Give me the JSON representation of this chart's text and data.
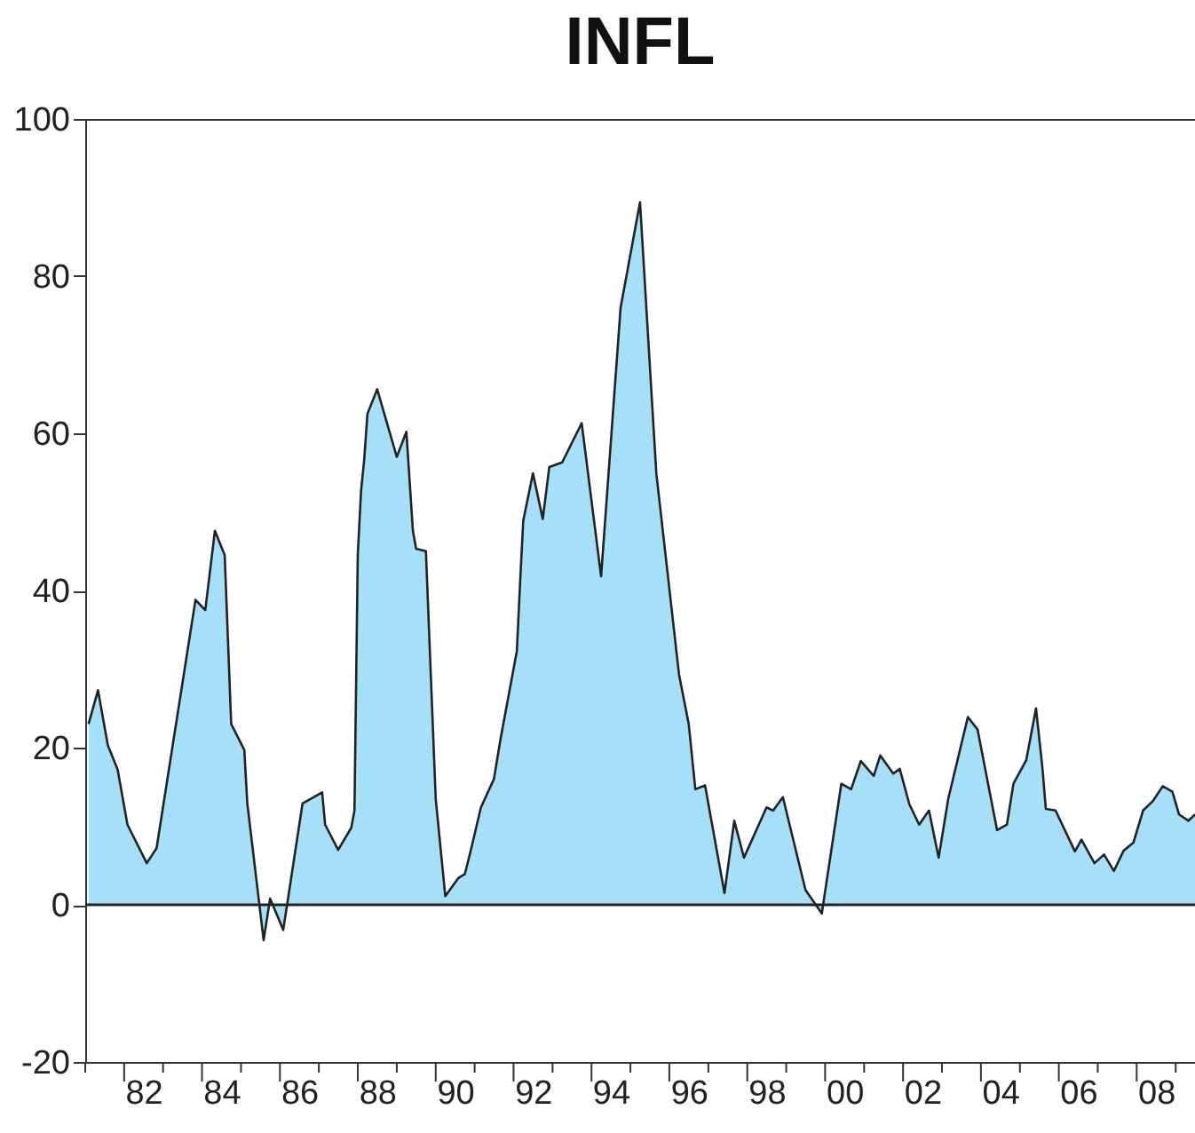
{
  "chart_data": {
    "type": "area",
    "title": "INFL",
    "x": [
      "1981-02",
      "1981-05",
      "1981-08",
      "1981-11",
      "1982-02",
      "1982-08",
      "1982-11",
      "1983-11",
      "1984-02",
      "1984-05",
      "1984-08",
      "1984-10",
      "1985-02",
      "1985-03",
      "1985-08",
      "1985-10",
      "1986-02",
      "1986-08",
      "1987-02",
      "1987-03",
      "1987-07",
      "1987-11",
      "1987-12",
      "1988-01",
      "1988-02",
      "1988-03",
      "1988-04",
      "1988-07",
      "1989-01",
      "1989-04",
      "1989-06",
      "1989-07",
      "1989-10",
      "1990-01",
      "1990-04",
      "1990-08",
      "1990-10",
      "1990-12",
      "1991-03",
      "1991-07",
      "1991-09",
      "1992-02",
      "1992-03",
      "1992-04",
      "1992-07",
      "1992-10",
      "1992-12",
      "1993-04",
      "1993-10",
      "1994-04",
      "1994-10",
      "1995-04",
      "1995-09",
      "1996-04",
      "1996-07",
      "1996-09",
      "1996-12",
      "1997-06",
      "1997-09",
      "1997-12",
      "1998-07",
      "1998-09",
      "1998-12",
      "1999-07",
      "1999-12",
      "2000-06",
      "2000-09",
      "2000-12",
      "2001-04",
      "2001-06",
      "2001-10",
      "2001-12",
      "2002-03",
      "2002-06",
      "2002-09",
      "2002-12",
      "2003-03",
      "2003-09",
      "2003-12",
      "2004-06",
      "2004-09",
      "2004-11",
      "2005-03",
      "2005-06",
      "2005-08",
      "2005-09",
      "2005-12",
      "2006-06",
      "2006-08",
      "2006-12",
      "2007-03",
      "2007-06",
      "2007-09",
      "2007-12",
      "2008-03",
      "2008-06",
      "2008-09",
      "2008-12",
      "2009-02",
      "2009-05",
      "2009-07"
    ],
    "series": [
      {
        "color": "#80d3f5",
        "values": [
          23.0,
          27.3,
          20.3,
          17.2,
          10.2,
          5.3,
          7.2,
          38.8,
          37.5,
          47.6,
          44.5,
          23.0,
          19.7,
          12.9,
          -4.5,
          0.8,
          -3.2,
          12.9,
          14.3,
          10.2,
          7.0,
          9.8,
          12.0,
          44.5,
          52.7,
          56.6,
          62.5,
          65.6,
          57.0,
          60.2,
          47.6,
          45.3,
          45.0,
          13.5,
          1.1,
          3.4,
          3.9,
          7.2,
          12.4,
          16.0,
          21.1,
          32.3,
          40.6,
          48.9,
          54.9,
          49.1,
          55.7,
          56.3,
          61.3,
          41.8,
          76.0,
          89.4,
          54.9,
          29.3,
          23.0,
          14.7,
          15.2,
          1.5,
          10.7,
          6.0,
          12.4,
          12.0,
          13.7,
          1.9,
          -1.1,
          15.4,
          14.7,
          18.3,
          16.4,
          19.0,
          16.7,
          17.3,
          12.8,
          10.2,
          12.0,
          6.0,
          13.5,
          23.9,
          22.3,
          9.5,
          10.2,
          15.4,
          18.4,
          25.0,
          17.3,
          12.2,
          12.0,
          6.8,
          8.3,
          5.3,
          6.4,
          4.3,
          6.9,
          7.9,
          12.0,
          13.2,
          15.1,
          14.4,
          11.5,
          10.7,
          11.5
        ]
      }
    ],
    "xlim": [
      "1981-01",
      "2009-07"
    ],
    "xticks": [
      {
        "value": "1981",
        "label": null
      },
      {
        "value": "1982",
        "label": null
      },
      {
        "value": "1982-07",
        "label": "82"
      },
      {
        "value": "1983",
        "label": null
      },
      {
        "value": "1984",
        "label": null
      },
      {
        "value": "1984-07",
        "label": "84"
      },
      {
        "value": "1985",
        "label": null
      },
      {
        "value": "1986",
        "label": null
      },
      {
        "value": "1986-07",
        "label": "86"
      },
      {
        "value": "1987",
        "label": null
      },
      {
        "value": "1988",
        "label": null
      },
      {
        "value": "1988-07",
        "label": "88"
      },
      {
        "value": "1989",
        "label": null
      },
      {
        "value": "1990",
        "label": null
      },
      {
        "value": "1990-07",
        "label": "90"
      },
      {
        "value": "1991",
        "label": null
      },
      {
        "value": "1992",
        "label": null
      },
      {
        "value": "1992-07",
        "label": "92"
      },
      {
        "value": "1993",
        "label": null
      },
      {
        "value": "1994",
        "label": null
      },
      {
        "value": "1994-07",
        "label": "94"
      },
      {
        "value": "1995",
        "label": null
      },
      {
        "value": "1996",
        "label": null
      },
      {
        "value": "1996-07",
        "label": "96"
      },
      {
        "value": "1997",
        "label": null
      },
      {
        "value": "1998",
        "label": null
      },
      {
        "value": "1998-07",
        "label": "98"
      },
      {
        "value": "1999",
        "label": null
      },
      {
        "value": "2000",
        "label": null
      },
      {
        "value": "2000-07",
        "label": "00"
      },
      {
        "value": "2001",
        "label": null
      },
      {
        "value": "2002",
        "label": null
      },
      {
        "value": "2002-07",
        "label": "02"
      },
      {
        "value": "2003",
        "label": null
      },
      {
        "value": "2004",
        "label": null
      },
      {
        "value": "2004-07",
        "label": "04"
      },
      {
        "value": "2005",
        "label": null
      },
      {
        "value": "2006",
        "label": null
      },
      {
        "value": "2006-07",
        "label": "06"
      },
      {
        "value": "2007",
        "label": null
      },
      {
        "value": "2008",
        "label": null
      },
      {
        "value": "2008-07",
        "label": "08"
      },
      {
        "value": "2009",
        "label": null
      }
    ],
    "ylim": [
      -20,
      100
    ],
    "yticks": [
      -20,
      0,
      20,
      40,
      60,
      80,
      100
    ],
    "ref_lines": [
      {
        "axis": "y",
        "value": 0
      }
    ],
    "grid": false
  }
}
